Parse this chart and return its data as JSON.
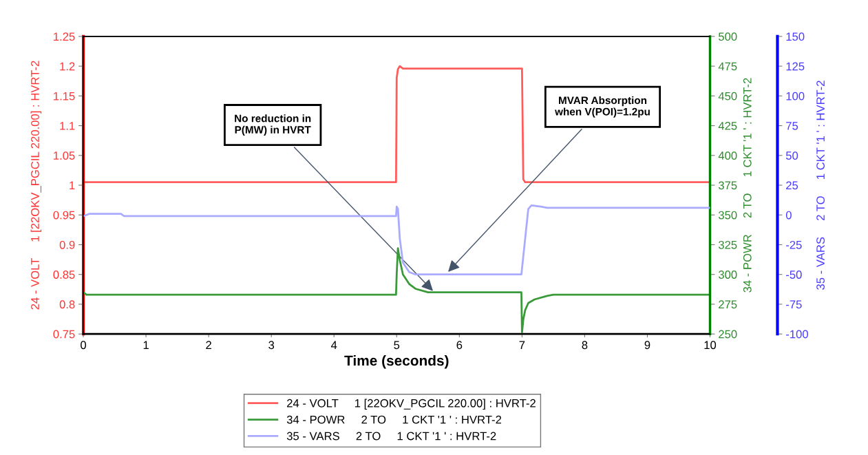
{
  "chart_data": {
    "type": "line",
    "xlabel": "Time (seconds)",
    "ylabel": "24 - VOLT     1 [22OKV_PGCIL 220.00] : HVRT-2",
    "y2label": "34 - POWR     2 TO     1 CKT '1 ' : HVRT-2",
    "y3label": "35 - VARS     2 TO     1 CKT '1 ' : HVRT-2",
    "xlim": [
      0,
      10
    ],
    "xticks": [
      0,
      1,
      2,
      3,
      4,
      5,
      6,
      7,
      8,
      9,
      10
    ],
    "ylim": [
      0.75,
      1.25
    ],
    "yticks": [
      0.75,
      0.8,
      0.85,
      0.9,
      0.95,
      1,
      1.05,
      1.1,
      1.15,
      1.2,
      1.25
    ],
    "y2lim": [
      250,
      500
    ],
    "y2ticks": [
      250,
      275,
      300,
      325,
      350,
      375,
      400,
      425,
      450,
      475,
      500
    ],
    "y3lim": [
      -100,
      150
    ],
    "y3ticks": [
      -100,
      -75,
      -50,
      -25,
      0,
      25,
      50,
      75,
      100,
      125,
      150
    ],
    "grid": false,
    "legend": "bottom",
    "marker": "none",
    "annotations": [
      {
        "text": "No reduction in\nP(MW) in HVRT",
        "x": 5.6,
        "y": 0.82
      },
      {
        "text": "MVAR Absorption\nwhen V(POI)=1.2pu",
        "x": 5.8,
        "y": 0.852
      }
    ],
    "series": [
      {
        "name": "24 - VOLT     1 [22OKV_PGCIL 220.00] : HVRT-2",
        "color": "#ff5c5c",
        "x": [
          0,
          4.99,
          5.0,
          5.02,
          5.05,
          5.1,
          7.0,
          7.02,
          7.05,
          10
        ],
        "values": [
          1.005,
          1.005,
          1.18,
          1.195,
          1.2,
          1.196,
          1.196,
          1.01,
          1.005,
          1.005
        ]
      },
      {
        "name": "34 - POWR     2 TO     1 CKT '1 ' : HVRT-2",
        "color": "#3a9a3a",
        "axis": "y2",
        "x": [
          0,
          0.05,
          4.99,
          5.0,
          5.02,
          5.05,
          5.1,
          5.2,
          5.3,
          5.5,
          6.0,
          6.99,
          7.0,
          7.02,
          7.05,
          7.1,
          7.2,
          7.4,
          7.5,
          10
        ],
        "values": [
          285,
          283,
          283,
          300,
          322,
          312,
          300,
          292,
          288,
          285,
          285,
          285,
          251,
          262,
          270,
          276,
          279,
          282,
          283,
          283
        ]
      },
      {
        "name": "35 - VARS     2 TO     1 CKT '1 ' : HVRT-2",
        "color": "#aaaaff",
        "axis": "y3",
        "x": [
          0,
          0.1,
          0.6,
          0.65,
          4.99,
          5.0,
          5.02,
          5.05,
          5.1,
          5.2,
          5.3,
          6.99,
          7.0,
          7.05,
          7.1,
          7.15,
          7.3,
          7.4,
          10
        ],
        "values": [
          -1,
          1,
          1,
          -1,
          -1,
          7,
          5,
          -20,
          -40,
          -48,
          -50,
          -50,
          -45,
          -20,
          5,
          8,
          7,
          6,
          6
        ]
      }
    ]
  }
}
